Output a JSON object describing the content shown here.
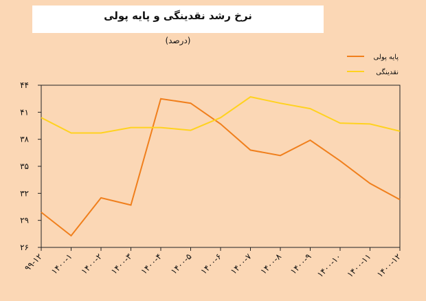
{
  "chart_data": {
    "type": "line",
    "title": "نرخ رشد نقدینگی و پایه پولی",
    "subtitle": "(درصد)",
    "categories": [
      "۹۹-۱۲",
      "۱۴۰۰-۱",
      "۱۴۰۰-۲",
      "۱۴۰۰-۳",
      "۱۴۰۰-۴",
      "۱۴۰۰-۵",
      "۱۴۰۰-۶",
      "۱۴۰۰-۷",
      "۱۴۰۰-۸",
      "۱۴۰۰-۹",
      "۱۴۰۰-۱۰",
      "۱۴۰۰-۱۱",
      "۱۴۰۰-۱۲"
    ],
    "y_tick_labels": [
      "۲۶",
      "۲۹",
      "۳۲",
      "۳۵",
      "۳۸",
      "۴۱",
      "۴۴"
    ],
    "y_ticks": [
      26,
      29,
      32,
      35,
      38,
      41,
      44
    ],
    "ylim": [
      26,
      44
    ],
    "series": [
      {
        "name": "پایه پولی",
        "color": "#f07f1c",
        "values": [
          29.9,
          27.3,
          31.5,
          30.7,
          42.5,
          42.0,
          39.7,
          36.8,
          36.2,
          37.9,
          35.6,
          33.1,
          31.3
        ]
      },
      {
        "name": "نقدینگی",
        "color": "#ffd21f",
        "values": [
          40.4,
          38.7,
          38.7,
          39.3,
          39.3,
          39.0,
          40.4,
          42.7,
          42.0,
          41.4,
          39.8,
          39.7,
          38.9
        ]
      }
    ],
    "legend_position": "top-right",
    "grid": false
  }
}
